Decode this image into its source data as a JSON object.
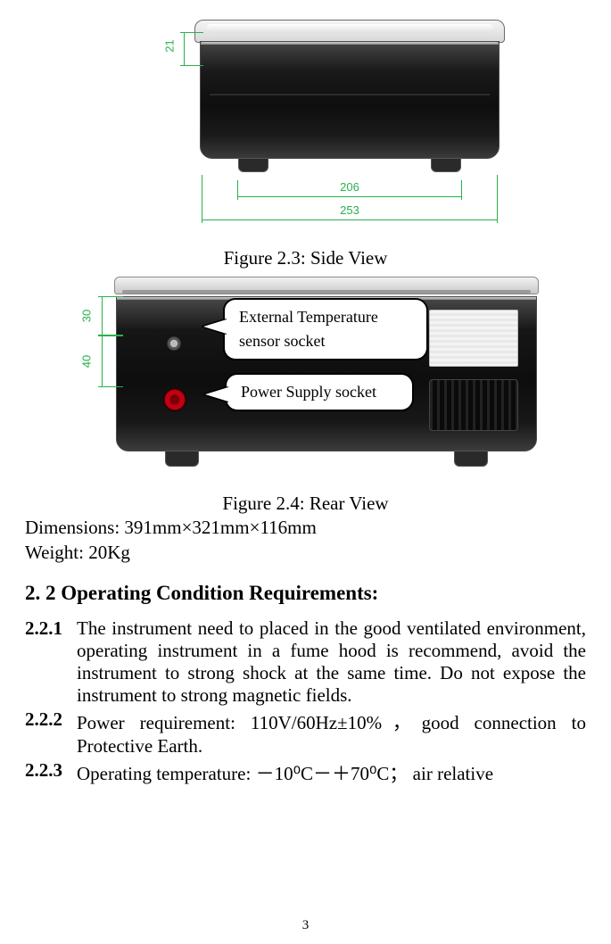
{
  "fig23": {
    "caption": "Figure 2.3:    Side View",
    "dim_v": "21",
    "dim_h_inner": "206",
    "dim_h_outer": "253",
    "dim_color": "#28b14c"
  },
  "fig24": {
    "caption": "Figure 2.4: Rear View",
    "dim_top": "30",
    "dim_bot": "40",
    "callout_ext_sensor": "External Temperature sensor socket",
    "callout_power": "Power Supply socket",
    "socket2_color": "#c30012"
  },
  "specs": {
    "dimensions": "Dimensions: 391mm×321mm×116mm",
    "weight": "Weight: 20Kg"
  },
  "section": {
    "heading": "2. 2 Operating Condition Requirements:",
    "items": [
      {
        "num": "2.2.1",
        "text": "The instrument need to placed in the good ventilated environment, operating instrument in a fume hood is recommend, avoid the instrument to strong shock at the same time. Do not expose the instrument to strong magnetic fields."
      },
      {
        "num": "2.2.2",
        "text": "Power requirement: 110V/60Hz±10%，good connection to Protective Earth."
      },
      {
        "num": "2.2.3",
        "text": "Operating temperature: －10⁰C－＋70⁰C；  air relative"
      }
    ]
  },
  "page_number": "3"
}
